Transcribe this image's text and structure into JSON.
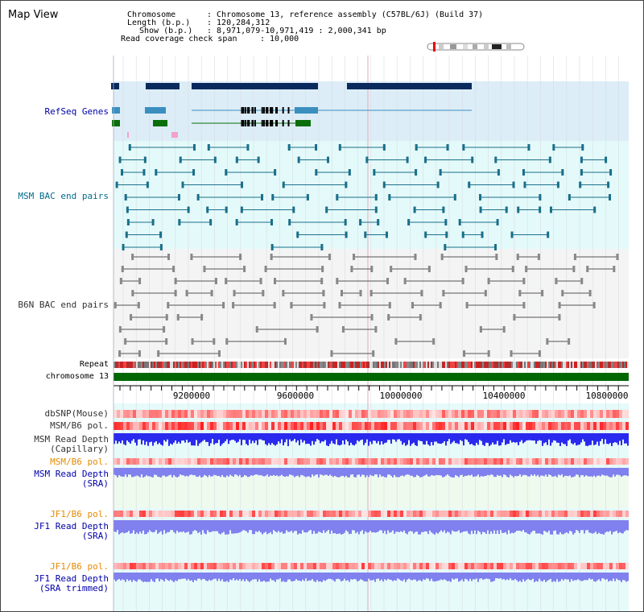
{
  "title": "Map View",
  "info": {
    "chromosome_label": "Chromosome",
    "chromosome_value": ": Chromosome 13, reference assembly (C57BL/6J) (Build 37)",
    "length_label": "Length (b.p.)",
    "length_value": ": 120,284,312",
    "show_label": "Show (b.p.)",
    "show_value": ": 8,971,079-10,971,419 : 2,000,341 bp",
    "span_label": "Read coverage check span",
    "span_value": ": 10,000"
  },
  "tracks": {
    "refseq": "RefSeq Genes",
    "msm_bac": "MSM BAC end pairs",
    "b6n_bac": "B6N BAC end pairs",
    "repeat": "Repeat",
    "chromosome": "chromosome 13",
    "dbsnp": "dbSNP(Mouse)",
    "msm_b6_pol": "MSM/B6 pol.",
    "msm_read_depth_1": "MSM Read Depth",
    "capillary": "(Capillary)",
    "msm_b6_pol_2": "MSM/B6 pol.",
    "msm_read_depth_2": "MSM Read Depth",
    "sra_1": "(SRA)",
    "jf1_b6_pol_1": "JF1/B6 pol.",
    "jf1_read_depth_1": "JF1 Read Depth",
    "sra_2": "(SRA)",
    "jf1_b6_pol_2": "JF1/B6 pol.",
    "jf1_read_depth_2": "JF1 Read Depth",
    "sra_trimmed": "(SRA trimmed)"
  },
  "axis": {
    "ticks": [
      "9200000",
      "9600000",
      "10000000",
      "10400000",
      "10800000"
    ]
  },
  "colors": {
    "refseq_bg": "#dcedf7",
    "track_bg": "#e4fafa",
    "msm_label": "#006b8a",
    "b6n_label": "#333333",
    "refseq_label": "#0000aa",
    "pol_label": "#e68a00",
    "depth_label": "#0000aa",
    "gene_dark": "#0a2a5e",
    "gene_mid": "#3a8fbf",
    "gene_green": "#0a6e0a",
    "chromosome_bar": "#006600",
    "depth_blue": "#2a2aee",
    "depth_light": "#8080ee"
  }
}
